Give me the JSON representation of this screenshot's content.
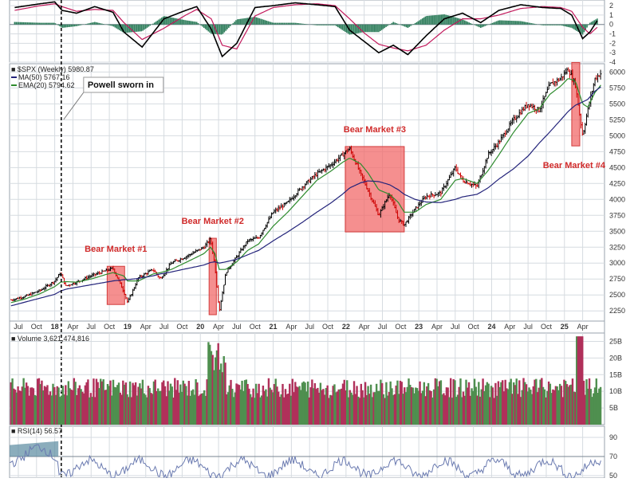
{
  "chart_data": [
    {
      "type": "line",
      "panel": "macd",
      "y_ticks": [
        2,
        1,
        0,
        -1,
        -2,
        -3,
        -4
      ],
      "ylim": [
        -4,
        2.6
      ],
      "x": [
        2017.45,
        2017.8,
        2018.0,
        2018.1,
        2018.3,
        2018.55,
        2018.8,
        2018.95,
        2019.2,
        2019.5,
        2019.8,
        2019.95,
        2020.15,
        2020.3,
        2020.5,
        2020.75,
        2021.0,
        2021.3,
        2021.6,
        2021.85,
        2022.05,
        2022.25,
        2022.45,
        2022.65,
        2022.85,
        2023.1,
        2023.35,
        2023.6,
        2023.85,
        2024.1,
        2024.4,
        2024.7,
        2024.95,
        2025.1,
        2025.25,
        2025.35,
        2025.45
      ],
      "series": [
        {
          "values": [
            1.8,
            2.2,
            2.4,
            1.5,
            1.2,
            1.9,
            1.3,
            -0.8,
            -2.4,
            0.6,
            1.5,
            1.9,
            -0.5,
            -3.4,
            -2.0,
            1.8,
            2.0,
            2.3,
            2.1,
            1.9,
            -0.6,
            -1.8,
            -3.0,
            -2.2,
            -3.2,
            -1.2,
            0.6,
            1.2,
            0.2,
            1.5,
            2.1,
            1.8,
            1.7,
            1.0,
            -1.5,
            -0.8,
            0.4
          ]
        },
        {
          "values": [
            1.5,
            2.0,
            2.2,
            1.9,
            1.4,
            1.6,
            1.5,
            0.2,
            -1.6,
            -0.4,
            1.0,
            1.6,
            0.6,
            -2.2,
            -2.6,
            0.9,
            1.8,
            2.1,
            2.2,
            2.0,
            0.6,
            -0.9,
            -2.1,
            -2.5,
            -2.8,
            -2.2,
            -0.6,
            0.6,
            0.6,
            1.0,
            1.7,
            1.9,
            1.8,
            1.4,
            -0.3,
            -1.0,
            -0.3
          ]
        }
      ],
      "colors": {
        "macd": "#000000",
        "signal": "#c2185b",
        "histogram": "#2e7d5b"
      }
    },
    {
      "type": "line",
      "panel": "price",
      "legend": {
        "spx": "$SPX (Weekly) 5980.87",
        "ma": "MA(50) 5767.16",
        "ema": "EMA(20) 5794.62"
      },
      "colors": {
        "ma": "#23237a",
        "ema": "#2e8b2e",
        "bar_up": "#000000",
        "bar_down": "#cc0000",
        "box_fill": "#f26a6a"
      },
      "x_ticks": [
        "Jul",
        "Oct",
        "18",
        "Apr",
        "Jul",
        "Oct",
        "19",
        "Apr",
        "Jul",
        "Oct",
        "20",
        "Apr",
        "Jul",
        "Oct",
        "21",
        "Apr",
        "Jul",
        "Oct",
        "22",
        "Apr",
        "Jul",
        "Oct",
        "23",
        "Apr",
        "Jul",
        "Oct",
        "24",
        "Apr",
        "Jul",
        "Oct",
        "25",
        "Apr"
      ],
      "x_tick_positions": [
        2017.5,
        2017.75,
        2018.0,
        2018.25,
        2018.5,
        2018.75,
        2019.0,
        2019.25,
        2019.5,
        2019.75,
        2020.0,
        2020.25,
        2020.5,
        2020.75,
        2021.0,
        2021.25,
        2021.5,
        2021.75,
        2022.0,
        2022.25,
        2022.5,
        2022.75,
        2023.0,
        2023.25,
        2023.5,
        2023.75,
        2024.0,
        2024.25,
        2024.5,
        2024.75,
        2025.0,
        2025.25
      ],
      "y_ticks": [
        6000,
        5750,
        5500,
        5250,
        5000,
        4750,
        4500,
        4250,
        4000,
        3750,
        3500,
        3250,
        3000,
        2750,
        2500,
        2250
      ],
      "ylim": [
        2090,
        6130
      ],
      "xlim": [
        2017.38,
        2025.55
      ],
      "x": [
        2017.4,
        2017.6,
        2017.8,
        2018.0,
        2018.08,
        2018.15,
        2018.3,
        2018.5,
        2018.7,
        2018.8,
        2018.95,
        2019.0,
        2019.15,
        2019.35,
        2019.45,
        2019.6,
        2019.8,
        2020.05,
        2020.14,
        2020.2,
        2020.26,
        2020.35,
        2020.5,
        2020.65,
        2020.8,
        2021.0,
        2021.2,
        2021.4,
        2021.6,
        2021.8,
        2021.95,
        2022.05,
        2022.2,
        2022.3,
        2022.45,
        2022.6,
        2022.72,
        2022.8,
        2022.95,
        2023.1,
        2023.3,
        2023.5,
        2023.6,
        2023.8,
        2023.95,
        2024.1,
        2024.3,
        2024.5,
        2024.65,
        2024.8,
        2024.95,
        2025.05,
        2025.15,
        2025.25,
        2025.32,
        2025.42,
        2025.5
      ],
      "values": [
        2420,
        2480,
        2570,
        2720,
        2850,
        2640,
        2700,
        2800,
        2880,
        2920,
        2550,
        2380,
        2770,
        2900,
        2750,
        3000,
        3100,
        3250,
        3380,
        2960,
        2240,
        2850,
        3100,
        3350,
        3400,
        3800,
        3950,
        4200,
        4400,
        4550,
        4700,
        4800,
        4400,
        4150,
        3750,
        4100,
        3680,
        3600,
        3850,
        4050,
        4100,
        4500,
        4300,
        4200,
        4700,
        4900,
        5250,
        5500,
        5400,
        5800,
        5900,
        6050,
        5800,
        5000,
        5400,
        5900,
        5980
      ],
      "ma_values": [
        2330,
        2390,
        2450,
        2510,
        2560,
        2590,
        2620,
        2660,
        2700,
        2720,
        2740,
        2740,
        2760,
        2800,
        2830,
        2860,
        2910,
        2970,
        3010,
        3020,
        3000,
        3020,
        3060,
        3130,
        3200,
        3350,
        3490,
        3640,
        3800,
        3950,
        4080,
        4180,
        4260,
        4290,
        4280,
        4230,
        4150,
        4080,
        4000,
        3960,
        3950,
        4000,
        4040,
        4080,
        4180,
        4320,
        4480,
        4680,
        4880,
        5060,
        5250,
        5380,
        5480,
        5530,
        5570,
        5700,
        5767
      ],
      "ema_values": [
        2380,
        2440,
        2520,
        2630,
        2700,
        2710,
        2700,
        2750,
        2820,
        2850,
        2800,
        2720,
        2720,
        2830,
        2850,
        2900,
        3010,
        3150,
        3250,
        3150,
        2900,
        2900,
        3020,
        3200,
        3300,
        3580,
        3800,
        4050,
        4300,
        4450,
        4580,
        4650,
        4560,
        4420,
        4150,
        4080,
        3950,
        3800,
        3800,
        3920,
        4000,
        4300,
        4330,
        4250,
        4450,
        4700,
        5050,
        5350,
        5420,
        5650,
        5780,
        5900,
        5860,
        5500,
        5450,
        5680,
        5795
      ],
      "boxes": [
        {
          "label": "Bear Market #1",
          "x0": 2018.72,
          "x1": 2018.96,
          "y0": 2350,
          "y1": 2950
        },
        {
          "label": "Bear Market #2",
          "x0": 2020.12,
          "x1": 2020.22,
          "y0": 2190,
          "y1": 3390
        },
        {
          "label": "Bear Market #3",
          "x0": 2021.99,
          "x1": 2022.8,
          "y0": 3490,
          "y1": 4830
        },
        {
          "label": "Bear Market #4",
          "x0": 2025.1,
          "x1": 2025.21,
          "y0": 4840,
          "y1": 6150
        }
      ],
      "event": {
        "label": "Powell sworn in",
        "x": 2018.09
      }
    },
    {
      "type": "bar",
      "panel": "volume",
      "legend": "Volume 3,621,474,816",
      "y_ticks": [
        "25B",
        "20B",
        "15B",
        "10B",
        "5B"
      ],
      "y_tick_values": [
        25,
        20,
        15,
        10,
        5
      ],
      "ylim": [
        0,
        27.5
      ],
      "colors": {
        "up": "#4f8f4f",
        "down": "#b0305a"
      }
    },
    {
      "type": "line",
      "panel": "rsi",
      "legend": "RSI(14) 56.57",
      "y_ticks": [
        90,
        70,
        50
      ],
      "y_range": [
        90,
        50
      ],
      "colors": {
        "line": "#6a7ab0",
        "overbought_fill": "#5a8aa0"
      }
    }
  ]
}
